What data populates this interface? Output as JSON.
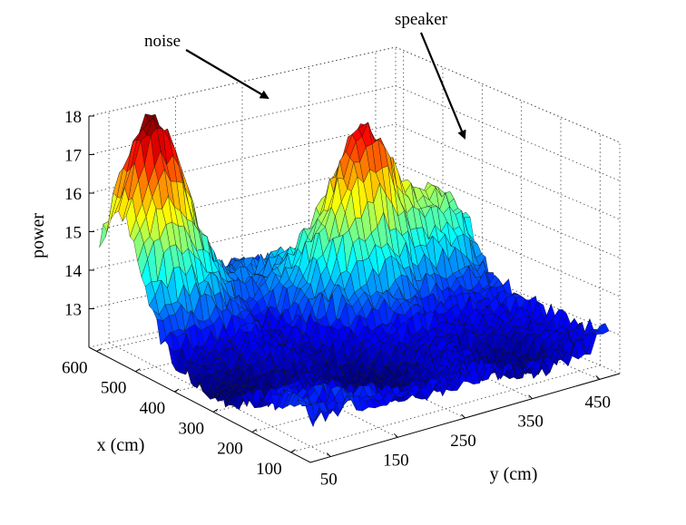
{
  "chart_data": {
    "type": "surface",
    "zlabel": "power",
    "xlabel": "x (cm)",
    "ylabel": "y (cm)",
    "x_ticks": [
      100,
      200,
      300,
      400,
      500,
      600
    ],
    "y_ticks": [
      50,
      150,
      250,
      350,
      450
    ],
    "z_ticks": [
      13,
      14,
      15,
      16,
      17,
      18
    ],
    "xlim": [
      50,
      620
    ],
    "ylim": [
      20,
      480
    ],
    "zlim": [
      12,
      18
    ],
    "colormap": "jet",
    "grid": true,
    "annotations": [
      {
        "text": "noise",
        "x": 560,
        "y": 80,
        "z": 17.9
      },
      {
        "text": "speaker",
        "x": 430,
        "y": 330,
        "z": 17.1
      }
    ],
    "peaks": [
      {
        "x": 560,
        "y": 80,
        "z": 18.0
      },
      {
        "x": 430,
        "y": 320,
        "z": 17.2
      },
      {
        "x": 430,
        "y": 430,
        "z": 15.2
      }
    ],
    "baseline": 13.1
  }
}
